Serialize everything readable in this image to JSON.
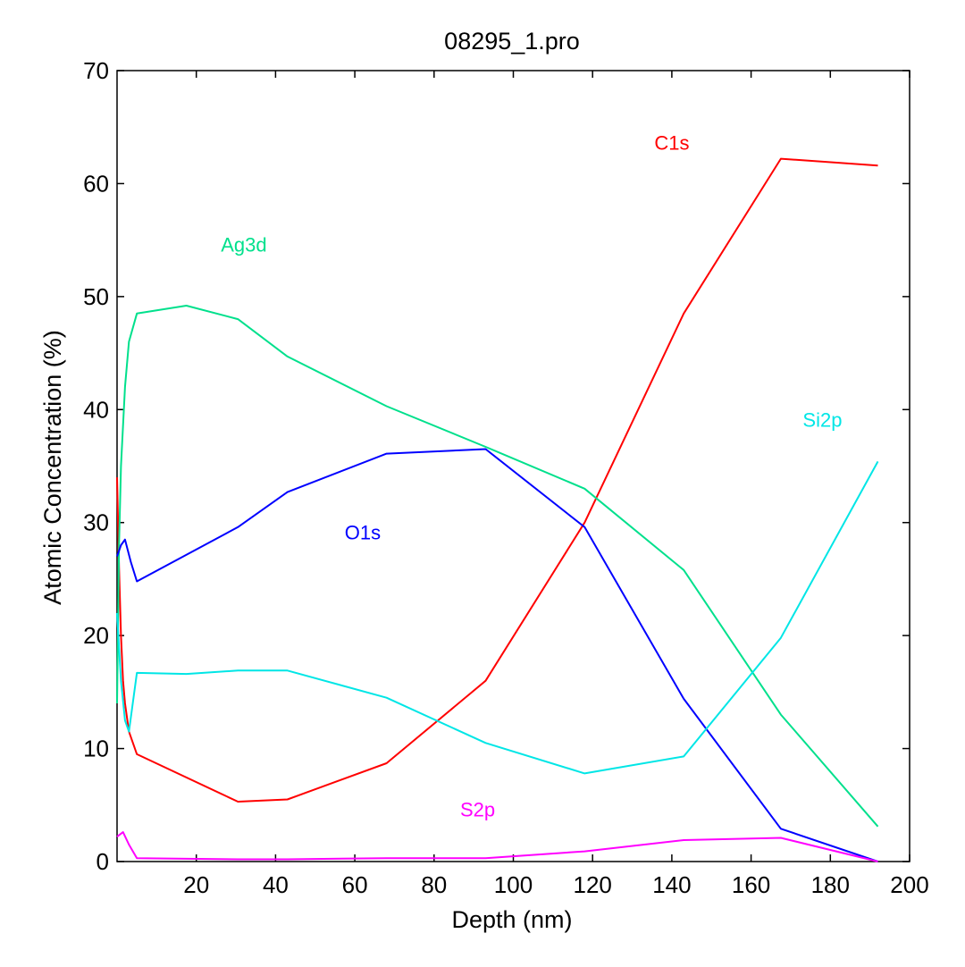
{
  "chart_data": {
    "type": "line",
    "title": "08295_1.pro",
    "xlabel": "Depth (nm)",
    "ylabel": "Atomic Concentration (%)",
    "xlim": [
      0,
      200
    ],
    "ylim": [
      0,
      70
    ],
    "xticks": [
      20,
      40,
      60,
      80,
      100,
      120,
      140,
      160,
      180,
      200
    ],
    "yticks": [
      0,
      10,
      20,
      30,
      40,
      50,
      60,
      70
    ],
    "grid": false,
    "series": [
      {
        "name": "C1s",
        "color": "#ff0000",
        "label_pos": [
          140,
          63
        ],
        "x": [
          0,
          0.5,
          1,
          1.5,
          2,
          3,
          5,
          30.5,
          43,
          68,
          93,
          118,
          143,
          167.5,
          192
        ],
        "y": [
          34,
          26,
          20,
          16,
          14,
          11.5,
          9.5,
          5.3,
          5.5,
          8.7,
          16,
          30,
          48.5,
          62.2,
          61.6
        ]
      },
      {
        "name": "Ag3d",
        "color": "#00e08c",
        "label_pos": [
          32,
          54
        ],
        "x": [
          0,
          0.5,
          1,
          2,
          3,
          5,
          17.5,
          30.5,
          43,
          68,
          93,
          118,
          143,
          167.5,
          192
        ],
        "y": [
          14,
          28,
          35,
          42,
          46,
          48.5,
          49.2,
          48,
          44.7,
          40.3,
          36.7,
          33,
          25.8,
          13,
          3.1
        ]
      },
      {
        "name": "O1s",
        "color": "#0000ff",
        "label_pos": [
          62,
          28.5
        ],
        "x": [
          0,
          1,
          2,
          3.5,
          5,
          30.5,
          43,
          68,
          93,
          118,
          143,
          167.5,
          192
        ],
        "y": [
          27,
          28,
          28.5,
          26.5,
          24.8,
          29.6,
          32.7,
          36.1,
          36.5,
          29.6,
          14.4,
          2.9,
          0
        ]
      },
      {
        "name": "Si2p",
        "color": "#00e6e6",
        "label_pos": [
          178,
          38.5
        ],
        "x": [
          0,
          1,
          2,
          3,
          5,
          17.5,
          30.5,
          43,
          68,
          93,
          118,
          143,
          167.5,
          192
        ],
        "y": [
          22,
          16,
          12.5,
          11.5,
          16.7,
          16.6,
          16.9,
          16.9,
          14.5,
          10.5,
          7.8,
          9.3,
          19.8,
          35.4
        ]
      },
      {
        "name": "S2p",
        "color": "#ff00ff",
        "label_pos": [
          91,
          4
        ],
        "x": [
          0,
          1.5,
          3,
          5,
          30.5,
          43,
          68,
          93,
          118,
          143,
          167.5,
          192
        ],
        "y": [
          2.2,
          2.6,
          1.5,
          0.3,
          0.2,
          0.2,
          0.3,
          0.3,
          0.9,
          1.9,
          2.1,
          0
        ]
      }
    ]
  }
}
